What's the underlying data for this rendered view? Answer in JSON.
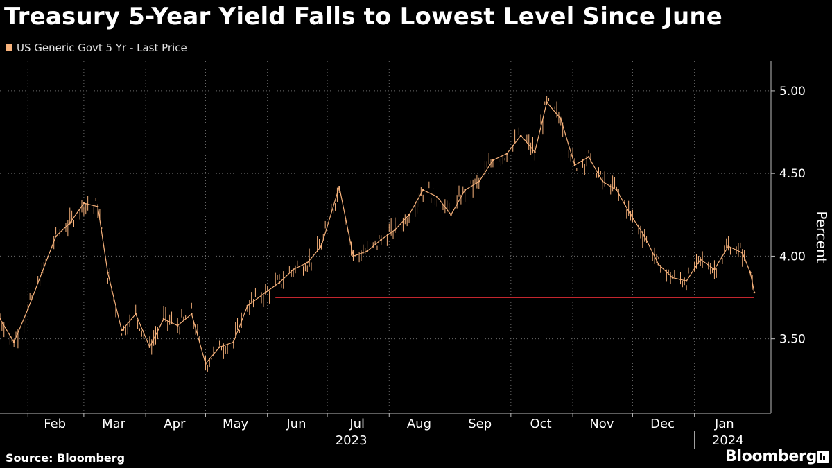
{
  "header": {
    "title": "Treasury 5-Year Yield Falls to Lowest Level Since June"
  },
  "footer": {
    "source": "Source: Bloomberg",
    "brand": "Bloomberg"
  },
  "colors": {
    "background": "#000000",
    "series": "#f7b27b",
    "reference_line": "#c4262e",
    "grid": "#6b6b6b"
  },
  "chart_data": {
    "type": "line",
    "title": "Treasury 5-Year Yield Falls to Lowest Level Since June",
    "legend": [
      "US Generic Govt 5 Yr - Last Price"
    ],
    "legend_placement": "top-left",
    "ylabel": "Percent",
    "xlabel": "",
    "ylim": [
      3.05,
      5.18
    ],
    "yticks": [
      3.5,
      4.0,
      4.5,
      5.0
    ],
    "ytick_labels": [
      "3.50",
      "4.00",
      "4.50",
      "5.00"
    ],
    "y_axis_side": "right",
    "grid": true,
    "x_tick_labels": [
      "Feb",
      "Mar",
      "Apr",
      "May",
      "Jun",
      "Jul",
      "Aug",
      "Sep",
      "Oct",
      "Nov",
      "Dec",
      "Jan"
    ],
    "x_year_labels": [
      "2023",
      "2024"
    ],
    "xlim": [
      "2023-01-18",
      "2024-01-31"
    ],
    "series": [
      {
        "name": "US Generic Govt 5 Yr - Last Price",
        "x": [
          "2023-01-18",
          "2023-01-25",
          "2023-02-01",
          "2023-02-08",
          "2023-02-15",
          "2023-02-22",
          "2023-03-01",
          "2023-03-08",
          "2023-03-13",
          "2023-03-20",
          "2023-03-27",
          "2023-04-03",
          "2023-04-10",
          "2023-04-17",
          "2023-04-24",
          "2023-05-01",
          "2023-05-08",
          "2023-05-15",
          "2023-05-22",
          "2023-05-31",
          "2023-06-07",
          "2023-06-14",
          "2023-06-21",
          "2023-06-28",
          "2023-07-07",
          "2023-07-14",
          "2023-07-21",
          "2023-07-28",
          "2023-08-04",
          "2023-08-11",
          "2023-08-18",
          "2023-08-25",
          "2023-09-01",
          "2023-09-08",
          "2023-09-15",
          "2023-09-22",
          "2023-09-29",
          "2023-10-06",
          "2023-10-13",
          "2023-10-19",
          "2023-10-26",
          "2023-11-02",
          "2023-11-09",
          "2023-11-16",
          "2023-11-23",
          "2023-11-30",
          "2023-12-07",
          "2023-12-14",
          "2023-12-21",
          "2023-12-28",
          "2024-01-04",
          "2024-01-11",
          "2024-01-18",
          "2024-01-25",
          "2024-01-29",
          "2024-01-31"
        ],
        "values": [
          3.62,
          3.48,
          3.68,
          3.9,
          4.12,
          4.2,
          4.32,
          4.3,
          3.9,
          3.55,
          3.65,
          3.45,
          3.62,
          3.58,
          3.65,
          3.35,
          3.45,
          3.48,
          3.7,
          3.78,
          3.84,
          3.92,
          3.96,
          4.06,
          4.42,
          4.0,
          4.03,
          4.1,
          4.16,
          4.25,
          4.4,
          4.36,
          4.25,
          4.4,
          4.45,
          4.58,
          4.62,
          4.73,
          4.63,
          4.93,
          4.83,
          4.55,
          4.6,
          4.45,
          4.4,
          4.25,
          4.12,
          3.95,
          3.87,
          3.85,
          3.98,
          3.92,
          4.06,
          4.02,
          3.9,
          3.78
        ]
      }
    ],
    "reference_line": {
      "value": 3.75,
      "from": "2023-06-05",
      "to": "2024-01-31"
    }
  }
}
